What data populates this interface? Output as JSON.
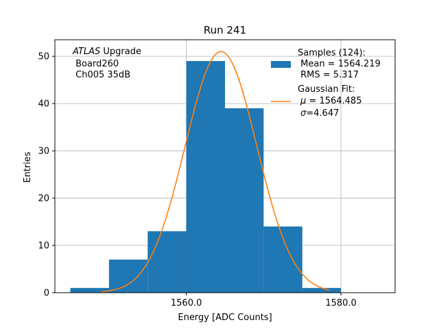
{
  "chart_data": {
    "type": "bar",
    "title": "Run 241",
    "xlabel": "Energy [ADC Counts]",
    "ylabel": "Entries",
    "xlim": [
      1543.0,
      1587.0
    ],
    "ylim": [
      0,
      53.5
    ],
    "xticks": [
      1560.0,
      1580.0
    ],
    "xtick_labels": [
      "1560.0",
      "1580.0"
    ],
    "yticks": [
      0,
      10,
      20,
      30,
      40,
      50
    ],
    "ytick_labels": [
      "0",
      "10",
      "20",
      "30",
      "40",
      "50"
    ],
    "grid": true,
    "bin_edges": [
      1545,
      1550,
      1555,
      1560,
      1565,
      1570,
      1575,
      1580,
      1585
    ],
    "values": [
      1,
      7,
      13,
      49,
      39,
      14,
      1,
      0
    ],
    "bar_color": "#1f77b4",
    "fit": {
      "mu": 1564.485,
      "sigma": 4.647,
      "amplitude": 51,
      "x_range": [
        1549.0,
        1578.5
      ],
      "color": "#ff7f0e"
    },
    "legend": {
      "placement": "top-right",
      "samples_header": "Samples (124):",
      "samples_mean": " Mean = 1564.219",
      "samples_rms": " RMS = 5.317",
      "fit_header": "Gaussian Fit:",
      "fit_mu_symbol": "μ",
      "fit_mu_value": " = 1564.485",
      "fit_sigma_symbol": "σ",
      "fit_sigma_value": "=4.647"
    },
    "annotation": {
      "experiment": "ATLAS",
      "suffix": " Upgrade",
      "line2": " Board260",
      "line3": " Ch005 35dB"
    }
  }
}
